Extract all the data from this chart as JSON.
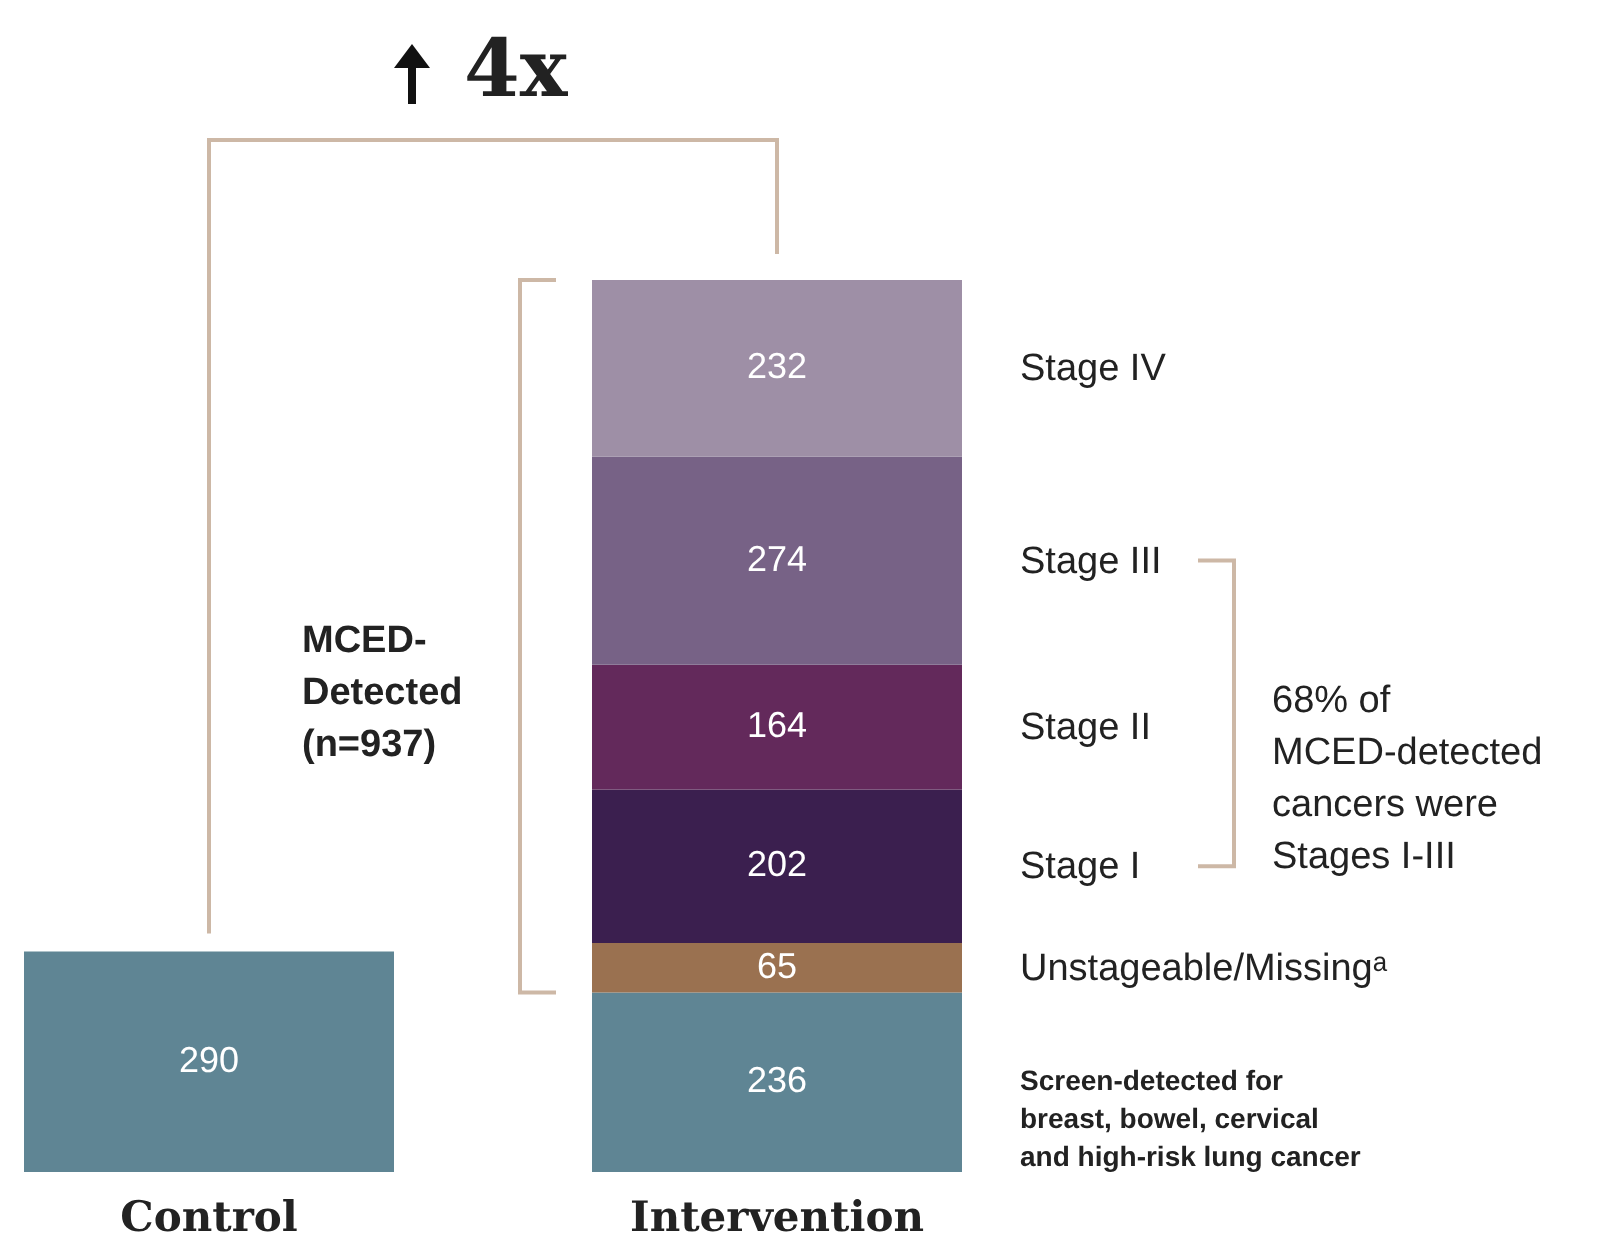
{
  "chart_data": {
    "type": "bar",
    "stacked": true,
    "data_labels": true,
    "categories": [
      "Control",
      "Intervention"
    ],
    "series": [
      {
        "name": "Screen-detected for breast, bowel, cervical and high-risk lung cancer",
        "color": "#5f8594",
        "values": [
          290,
          236
        ]
      },
      {
        "name": "Unstageable/Missingᵃ",
        "color": "#9a7150",
        "values": [
          null,
          65
        ]
      },
      {
        "name": "Stage I",
        "color": "#3b1f4f",
        "values": [
          null,
          202
        ]
      },
      {
        "name": "Stage II",
        "color": "#63295b",
        "values": [
          null,
          164
        ]
      },
      {
        "name": "Stage III",
        "color": "#776286",
        "values": [
          null,
          274
        ]
      },
      {
        "name": "Stage IV",
        "color": "#9e8fa6",
        "values": [
          null,
          232
        ]
      }
    ],
    "annotations": [
      "4x",
      "MCED-Detected (n=937)",
      "68% of MCED-detected cancers were Stages I-III"
    ]
  }
}
